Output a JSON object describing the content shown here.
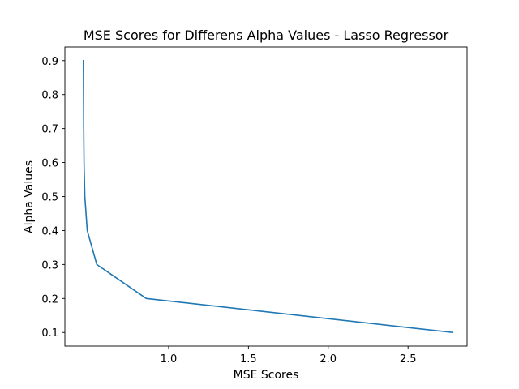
{
  "chart_data": {
    "type": "line",
    "title": "MSE Scores for Differens Alpha Values - Lasso Regressor",
    "xlabel": "MSE Scores",
    "ylabel": "Alpha Values",
    "xlim": [
      0.35,
      2.87
    ],
    "ylim": [
      0.06,
      0.94
    ],
    "xticks": [
      1.0,
      1.5,
      2.0,
      2.5
    ],
    "xtick_labels": [
      "1.0",
      "1.5",
      "2.0",
      "2.5"
    ],
    "yticks": [
      0.1,
      0.2,
      0.3,
      0.4,
      0.5,
      0.6,
      0.7,
      0.8,
      0.9
    ],
    "ytick_labels": [
      "0.1",
      "0.2",
      "0.3",
      "0.4",
      "0.5",
      "0.6",
      "0.7",
      "0.8",
      "0.9"
    ],
    "grid": false,
    "color": "#1f77b4",
    "series": [
      {
        "x": [
          2.78,
          0.86,
          0.55,
          0.49,
          0.475,
          0.47,
          0.468,
          0.467,
          0.466
        ],
        "y": [
          0.1,
          0.2,
          0.3,
          0.4,
          0.5,
          0.6,
          0.7,
          0.8,
          0.9
        ]
      }
    ]
  }
}
